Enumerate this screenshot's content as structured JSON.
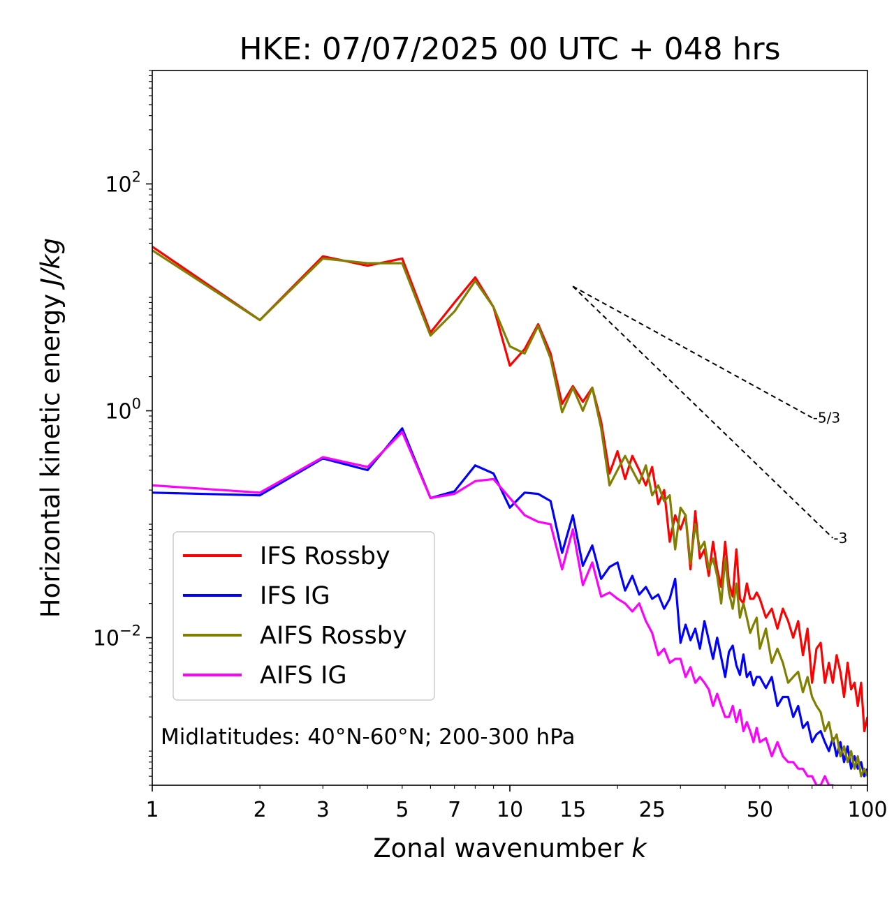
{
  "chart_data": {
    "type": "line",
    "title": "HKE: 07/07/2025 00 UTC + 048 hrs",
    "xlabel": "Zonal wavenumber ",
    "xlabel_italic": "k",
    "ylabel": "Horizontal kinetic energy ",
    "ylabel_italic": "J/kg",
    "xscale": "log",
    "yscale": "log",
    "xlim": [
      1,
      100
    ],
    "ylim": [
      0.0005,
      1000
    ],
    "grid": false,
    "legend_position": "lower-left",
    "annotation": "Midlatitudes: 40°N-60°N; 200-300 hPa",
    "x_ticks": [
      {
        "value": 1,
        "label": "1"
      },
      {
        "value": 2,
        "label": "2"
      },
      {
        "value": 3,
        "label": "3"
      },
      {
        "value": 5,
        "label": "5"
      },
      {
        "value": 7,
        "label": "7"
      },
      {
        "value": 10,
        "label": "10"
      },
      {
        "value": 15,
        "label": "15"
      },
      {
        "value": 25,
        "label": "25"
      },
      {
        "value": 50,
        "label": "50"
      },
      {
        "value": 100,
        "label": "100"
      }
    ],
    "y_ticks": [
      {
        "value": 0.01,
        "base": "10",
        "exp": "−2"
      },
      {
        "value": 1,
        "base": "10",
        "exp": "0"
      },
      {
        "value": 100,
        "base": "10",
        "exp": "2"
      }
    ],
    "reference_slopes": [
      {
        "label": "-5/3",
        "points": [
          [
            15,
            12.5
          ],
          [
            70,
            0.87
          ]
        ]
      },
      {
        "label": "-3",
        "points": [
          [
            15,
            12.5
          ],
          [
            80,
            0.0756
          ]
        ]
      }
    ],
    "series": [
      {
        "name": "IFS Rossby",
        "color": "#ff0000",
        "x": [
          1,
          2,
          3,
          4,
          5,
          6,
          7,
          8,
          9,
          10,
          11,
          12,
          13,
          14,
          15,
          16,
          17,
          18,
          19,
          20,
          21,
          22,
          23,
          24,
          25,
          26,
          27,
          28,
          29,
          30,
          31,
          32,
          33,
          34,
          35,
          36,
          37,
          38,
          39,
          40,
          41,
          42,
          43,
          44,
          45,
          46,
          47,
          48,
          49,
          50,
          52,
          54,
          56,
          58,
          60,
          62,
          64,
          66,
          68,
          70,
          72,
          74,
          76,
          78,
          80,
          82,
          84,
          86,
          88,
          90,
          92,
          94,
          96,
          98,
          100
        ],
        "y": [
          28,
          6.3,
          23,
          19,
          22,
          4.9,
          9,
          15,
          8.2,
          2.5,
          3.5,
          5.8,
          3.2,
          1.15,
          1.65,
          1.2,
          1.6,
          0.8,
          0.28,
          0.44,
          0.25,
          0.4,
          0.3,
          0.22,
          0.32,
          0.15,
          0.2,
          0.07,
          0.12,
          0.09,
          0.12,
          0.04,
          0.13,
          0.05,
          0.06,
          0.035,
          0.07,
          0.04,
          0.028,
          0.07,
          0.03,
          0.023,
          0.06,
          0.022,
          0.02,
          0.03,
          0.022,
          0.022,
          0.025,
          0.022,
          0.015,
          0.018,
          0.012,
          0.018,
          0.014,
          0.01,
          0.014,
          0.007,
          0.012,
          0.004,
          0.008,
          0.009,
          0.004,
          0.006,
          0.004,
          0.007,
          0.005,
          0.003,
          0.006,
          0.0035,
          0.004,
          0.0025,
          0.004,
          0.0015,
          0.002
        ]
      },
      {
        "name": "IFS IG",
        "color": "#0000ff",
        "x": [
          1,
          2,
          3,
          4,
          5,
          6,
          7,
          8,
          9,
          10,
          11,
          12,
          13,
          14,
          15,
          16,
          17,
          18,
          19,
          20,
          21,
          22,
          23,
          24,
          25,
          26,
          27,
          28,
          29,
          30,
          31,
          32,
          33,
          34,
          35,
          36,
          37,
          38,
          39,
          40,
          41,
          42,
          43,
          44,
          45,
          46,
          47,
          48,
          49,
          50,
          52,
          54,
          56,
          58,
          60,
          62,
          64,
          66,
          68,
          70,
          72,
          74,
          76,
          78,
          80,
          82,
          84,
          86,
          88,
          90,
          92,
          94,
          96,
          98,
          100
        ],
        "y": [
          0.19,
          0.18,
          0.38,
          0.3,
          0.7,
          0.17,
          0.195,
          0.33,
          0.28,
          0.14,
          0.19,
          0.185,
          0.16,
          0.056,
          0.12,
          0.043,
          0.065,
          0.033,
          0.042,
          0.046,
          0.026,
          0.035,
          0.024,
          0.028,
          0.022,
          0.024,
          0.018,
          0.022,
          0.033,
          0.009,
          0.013,
          0.0095,
          0.012,
          0.008,
          0.014,
          0.0095,
          0.0065,
          0.01,
          0.0067,
          0.0045,
          0.0075,
          0.0085,
          0.0057,
          0.0047,
          0.0071,
          0.0045,
          0.005,
          0.0038,
          0.0045,
          0.0045,
          0.0036,
          0.0045,
          0.0025,
          0.003,
          0.003,
          0.002,
          0.0025,
          0.0016,
          0.0018,
          0.0012,
          0.0014,
          0.0015,
          0.0012,
          0.001,
          0.0013,
          0.0009,
          0.0012,
          0.0008,
          0.0011,
          0.0007,
          0.0009,
          0.0007,
          0.0008,
          0.0006,
          0.0007
        ]
      },
      {
        "name": "AIFS Rossby",
        "color": "#808000",
        "x": [
          1,
          2,
          3,
          4,
          5,
          6,
          7,
          8,
          9,
          10,
          11,
          12,
          13,
          14,
          15,
          16,
          17,
          18,
          19,
          20,
          21,
          22,
          23,
          24,
          25,
          26,
          27,
          28,
          29,
          30,
          31,
          32,
          33,
          34,
          35,
          36,
          37,
          38,
          39,
          40,
          41,
          42,
          43,
          44,
          45,
          46,
          47,
          48,
          49,
          50,
          52,
          54,
          56,
          58,
          60,
          62,
          64,
          66,
          68,
          70,
          72,
          74,
          76,
          78,
          80,
          82,
          84,
          86,
          88,
          90,
          92,
          94,
          96,
          98,
          100
        ],
        "y": [
          26,
          6.3,
          22,
          20,
          20,
          4.6,
          7.5,
          14,
          8.2,
          3.7,
          3.2,
          5.6,
          2.9,
          0.97,
          1.6,
          1.0,
          1.6,
          0.7,
          0.22,
          0.3,
          0.4,
          0.3,
          0.23,
          0.33,
          0.18,
          0.22,
          0.16,
          0.18,
          0.06,
          0.14,
          0.12,
          0.045,
          0.1,
          0.06,
          0.07,
          0.04,
          0.05,
          0.035,
          0.02,
          0.05,
          0.025,
          0.018,
          0.03,
          0.015,
          0.02,
          0.015,
          0.011,
          0.013,
          0.015,
          0.008,
          0.012,
          0.006,
          0.008,
          0.006,
          0.004,
          0.0045,
          0.005,
          0.0033,
          0.0045,
          0.003,
          0.0025,
          0.0022,
          0.0015,
          0.0018,
          0.0012,
          0.0014,
          0.0009,
          0.0011,
          0.0008,
          0.001,
          0.0007,
          0.0009,
          0.0006,
          0.0007,
          0.0006
        ]
      },
      {
        "name": "AIFS IG",
        "color": "#ff00ff",
        "x": [
          1,
          2,
          3,
          4,
          5,
          6,
          7,
          8,
          9,
          10,
          11,
          12,
          13,
          14,
          15,
          16,
          17,
          18,
          19,
          20,
          21,
          22,
          23,
          24,
          25,
          26,
          27,
          28,
          29,
          30,
          31,
          32,
          33,
          34,
          35,
          36,
          37,
          38,
          39,
          40,
          41,
          42,
          43,
          44,
          45,
          46,
          47,
          48,
          49,
          50,
          52,
          54,
          56,
          58,
          60,
          62,
          64,
          66,
          68,
          70,
          72,
          74,
          76,
          78,
          80,
          82,
          84,
          86,
          88,
          90,
          92,
          94,
          96,
          98,
          100
        ],
        "y": [
          0.22,
          0.19,
          0.39,
          0.32,
          0.65,
          0.17,
          0.185,
          0.24,
          0.25,
          0.17,
          0.12,
          0.105,
          0.1,
          0.04,
          0.09,
          0.029,
          0.046,
          0.023,
          0.025,
          0.022,
          0.02,
          0.017,
          0.02,
          0.014,
          0.011,
          0.007,
          0.008,
          0.006,
          0.0065,
          0.0065,
          0.0045,
          0.0055,
          0.004,
          0.0045,
          0.004,
          0.0035,
          0.0025,
          0.0032,
          0.0025,
          0.002,
          0.002,
          0.0025,
          0.0018,
          0.0023,
          0.0015,
          0.0018,
          0.0015,
          0.0012,
          0.0016,
          0.0012,
          0.0013,
          0.0009,
          0.0012,
          0.0009,
          0.0008,
          0.0008,
          0.0007,
          0.0007,
          0.0006,
          0.0006,
          0.0005,
          0.0005,
          0.0006,
          0.0005,
          0.0005,
          0.0004,
          0.0004,
          0.0004,
          0.0004,
          0.0004,
          0.0004,
          0.0004,
          0.0004,
          0.0004,
          0.0004
        ]
      }
    ]
  }
}
